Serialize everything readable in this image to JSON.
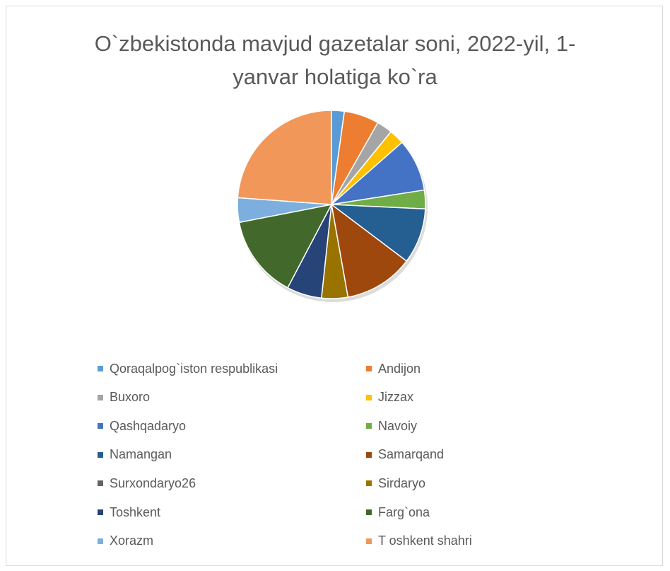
{
  "chart_data": {
    "type": "pie",
    "title": "O`zbekistonda mavjud gazetalar soni, 2022-yil, 1-yanvar holatiga ko`ra",
    "title_lines": [
      "O`zbekistonda mavjud gazetalar soni, 2022-yil, 1-",
      "yanvar holatiga ko`ra"
    ],
    "legend_position": "bottom",
    "slices": [
      {
        "label": "Qoraqalpog`iston respublikasi",
        "value": 2.2,
        "color": "#5b9bd5"
      },
      {
        "label": "Andijon",
        "value": 6.0,
        "color": "#ed7d31"
      },
      {
        "label": "Buxoro",
        "value": 2.7,
        "color": "#a5a5a5"
      },
      {
        "label": "Jizzax",
        "value": 2.6,
        "color": "#ffc000"
      },
      {
        "label": "Qashqadaryo",
        "value": 9.0,
        "color": "#4472c4"
      },
      {
        "label": "Navoiy",
        "value": 3.2,
        "color": "#70ad47"
      },
      {
        "label": "Namangan",
        "value": 9.5,
        "color": "#255e91"
      },
      {
        "label": "Samarqand",
        "value": 11.9,
        "color": "#9e480e"
      },
      {
        "label": "Surxondaryo26",
        "value": 0,
        "color": "#636363"
      },
      {
        "label": "Sirdaryo",
        "value": 4.5,
        "color": "#997300"
      },
      {
        "label": "Toshkent",
        "value": 6.0,
        "color": "#264478"
      },
      {
        "label": "Farg`ona",
        "value": 14.2,
        "color": "#43682b"
      },
      {
        "label": "Xorazm",
        "value": 4.2,
        "color": "#7cafdd"
      },
      {
        "label": "T oshkent shahri",
        "value": 23.8,
        "color": "#f1975a"
      }
    ]
  }
}
